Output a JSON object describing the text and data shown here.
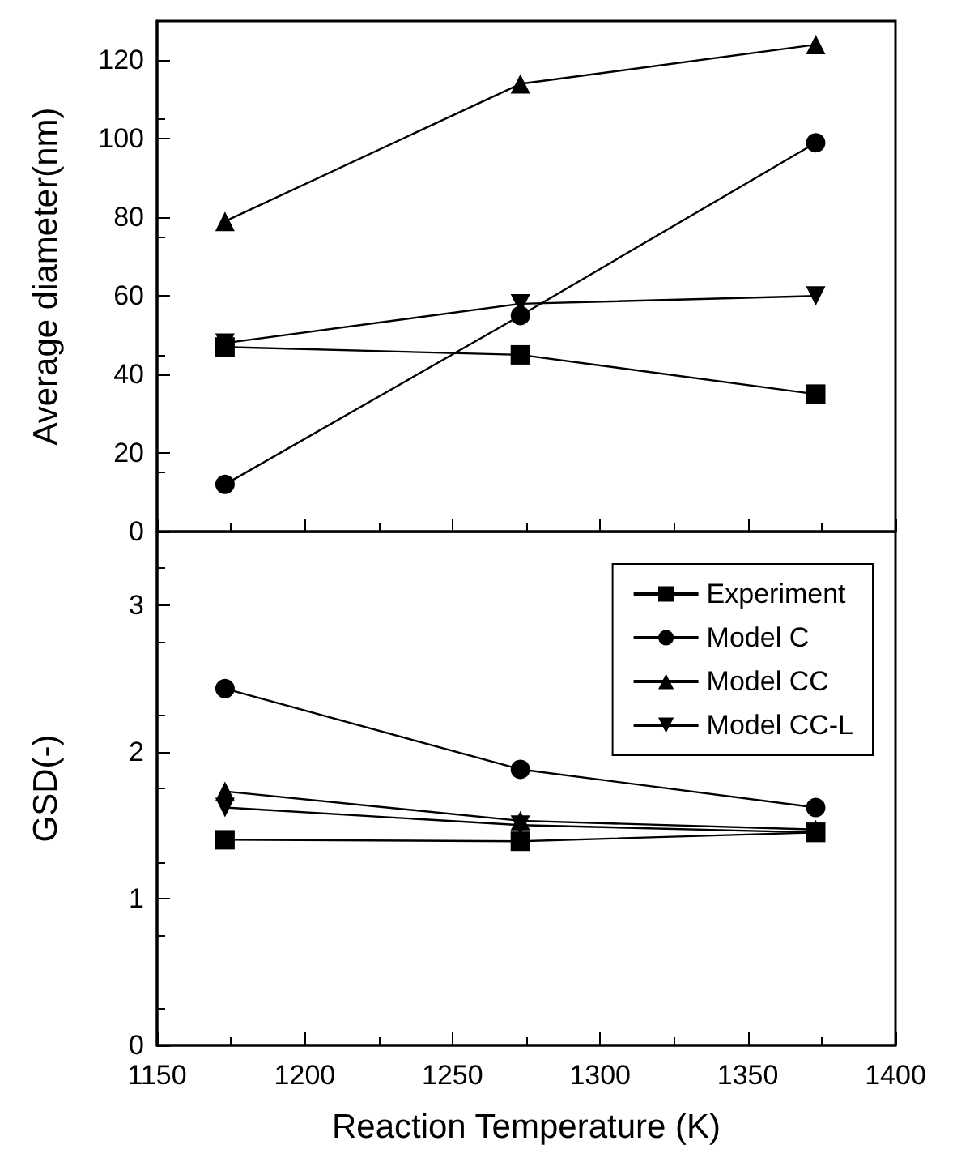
{
  "chart_data": [
    {
      "type": "line",
      "ylabel": "Average diameter(nm)",
      "x": [
        1173,
        1273,
        1373
      ],
      "xlim": [
        1150,
        1400
      ],
      "xticks": [
        1150,
        1200,
        1250,
        1300,
        1350,
        1400
      ],
      "ylim": [
        0,
        130
      ],
      "yticks": [
        0,
        20,
        40,
        60,
        80,
        100,
        120
      ],
      "tick_labels": "y",
      "grid": false,
      "legend": false,
      "series": [
        {
          "color": "#000000",
          "marker": "square",
          "values": [
            47,
            45,
            35
          ]
        },
        {
          "color": "#000000",
          "marker": "circle",
          "values": [
            12,
            55,
            99
          ]
        },
        {
          "color": "#000000",
          "marker": "triangle",
          "values": [
            79,
            114,
            124
          ]
        },
        {
          "color": "#000000",
          "marker": "triangle-down",
          "values": [
            48,
            58,
            60
          ]
        }
      ]
    },
    {
      "type": "line",
      "xlabel": "Reaction Temperature (K)",
      "ylabel": "GSD(-)",
      "x": [
        1173,
        1273,
        1373
      ],
      "xlim": [
        1150,
        1400
      ],
      "xticks": [
        1150,
        1200,
        1250,
        1300,
        1350,
        1400
      ],
      "ylim": [
        0,
        3.5
      ],
      "yticks": [
        0,
        1,
        2,
        3
      ],
      "grid": false,
      "legend": "top right",
      "series": [
        {
          "name": "Experiment",
          "color": "#000000",
          "marker": "square",
          "values": [
            1.4,
            1.39,
            1.45
          ]
        },
        {
          "name": "Model C",
          "color": "#000000",
          "marker": "circle",
          "values": [
            2.43,
            1.88,
            1.62
          ]
        },
        {
          "name": "Model CC",
          "color": "#000000",
          "marker": "triangle",
          "values": [
            1.73,
            1.53,
            1.47
          ]
        },
        {
          "name": "Model CC-L",
          "color": "#000000",
          "marker": "triangle-down",
          "values": [
            1.62,
            1.5,
            1.45
          ]
        }
      ]
    }
  ]
}
